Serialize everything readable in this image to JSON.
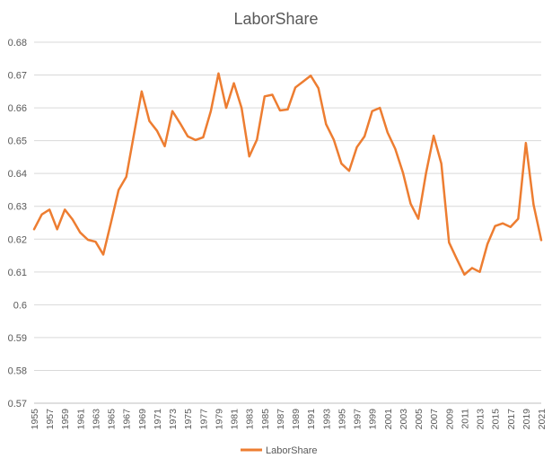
{
  "chart_data": {
    "type": "line",
    "title": "LaborShare",
    "xlabel": "",
    "ylabel": "",
    "ylim": [
      0.57,
      0.68
    ],
    "yticks": [
      "0.57",
      "0.58",
      "0.59",
      "0.6",
      "0.61",
      "0.62",
      "0.63",
      "0.64",
      "0.65",
      "0.66",
      "0.67",
      "0.68"
    ],
    "grid": true,
    "legend_position": "bottom",
    "x": [
      1955,
      1956,
      1957,
      1958,
      1959,
      1960,
      1961,
      1962,
      1963,
      1964,
      1965,
      1966,
      1967,
      1968,
      1969,
      1970,
      1971,
      1972,
      1973,
      1974,
      1975,
      1976,
      1977,
      1978,
      1979,
      1980,
      1981,
      1982,
      1983,
      1984,
      1985,
      1986,
      1987,
      1988,
      1989,
      1990,
      1991,
      1992,
      1993,
      1994,
      1995,
      1996,
      1997,
      1998,
      1999,
      2000,
      2001,
      2002,
      2003,
      2004,
      2005,
      2006,
      2007,
      2008,
      2009,
      2010,
      2011,
      2012,
      2013,
      2014,
      2015,
      2016,
      2017,
      2018,
      2019,
      2020,
      2021
    ],
    "xtick_labels": [
      "1955",
      "1957",
      "1959",
      "1961",
      "1963",
      "1965",
      "1967",
      "1969",
      "1971",
      "1973",
      "1975",
      "1977",
      "1979",
      "1981",
      "1983",
      "1985",
      "1987",
      "1989",
      "1991",
      "1993",
      "1995",
      "1997",
      "1999",
      "2001",
      "2003",
      "2005",
      "2007",
      "2009",
      "2011",
      "2013",
      "2015",
      "2017",
      "2019",
      "2021"
    ],
    "series": [
      {
        "name": "LaborShare",
        "color": "#ed7d31",
        "values": [
          0.623,
          0.6275,
          0.629,
          0.623,
          0.629,
          0.626,
          0.622,
          0.6198,
          0.6192,
          0.6153,
          0.625,
          0.635,
          0.639,
          0.652,
          0.665,
          0.656,
          0.653,
          0.6483,
          0.659,
          0.6553,
          0.6513,
          0.6502,
          0.651,
          0.659,
          0.6705,
          0.66,
          0.6675,
          0.66,
          0.6452,
          0.6503,
          0.6635,
          0.664,
          0.6592,
          0.6595,
          0.6662,
          0.668,
          0.6698,
          0.666,
          0.655,
          0.6503,
          0.643,
          0.6408,
          0.648,
          0.6513,
          0.659,
          0.66,
          0.6525,
          0.6475,
          0.6403,
          0.6308,
          0.6262,
          0.64,
          0.6515,
          0.643,
          0.619,
          0.614,
          0.6092,
          0.6112,
          0.61,
          0.6185,
          0.624,
          0.6248,
          0.6237,
          0.6262,
          0.6493,
          0.6305,
          0.6197
        ]
      }
    ]
  }
}
